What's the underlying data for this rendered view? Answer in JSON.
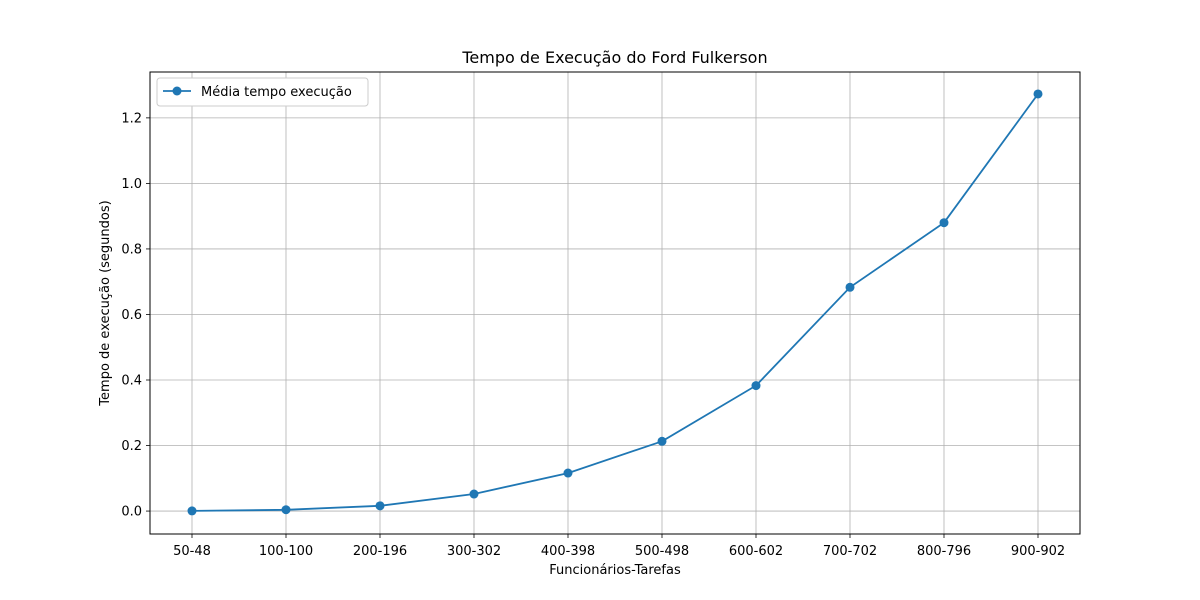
{
  "chart_data": {
    "type": "line",
    "title": "Tempo de Execução do Ford Fulkerson",
    "xlabel": "Funcionários-Tarefas",
    "ylabel": "Tempo de execução (segundos)",
    "categories": [
      "50-48",
      "100-100",
      "200-196",
      "300-302",
      "400-398",
      "500-498",
      "600-602",
      "700-702",
      "800-796",
      "900-902"
    ],
    "series": [
      {
        "name": "Média tempo execução",
        "color": "#1f77b4",
        "values": [
          0.0005,
          0.004,
          0.016,
          0.052,
          0.116,
          0.213,
          0.383,
          0.683,
          0.88,
          1.273
        ]
      }
    ],
    "ylim": [
      -0.07,
      1.34
    ],
    "yticks": [
      "0.0",
      "0.2",
      "0.4",
      "0.6",
      "0.8",
      "1.0",
      "1.2"
    ],
    "grid": true,
    "legend": "top-left"
  }
}
